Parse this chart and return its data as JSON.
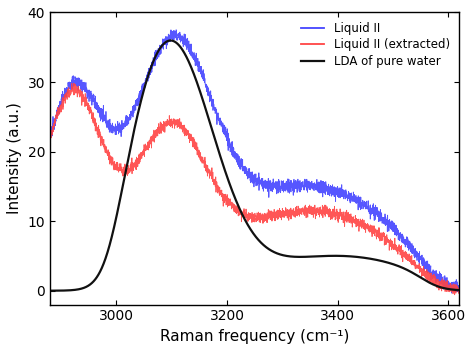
{
  "title": "",
  "xlabel": "Raman frequency (cm⁻¹)",
  "ylabel": "Intensity (a.u.)",
  "xlim": [
    2880,
    3620
  ],
  "ylim": [
    -2,
    40
  ],
  "yticks": [
    0,
    10,
    20,
    30,
    40
  ],
  "xticks": [
    3000,
    3200,
    3400,
    3600
  ],
  "legend": [
    "Liquid II",
    "Liquid II (extracted)",
    "LDA of pure water"
  ],
  "legend_colors": [
    "#4444ff",
    "#ff4444",
    "#111111"
  ],
  "blue_line_color": "#4444ff",
  "red_line_color": "#ff4444",
  "black_line_color": "#111111",
  "background_color": "#ffffff",
  "figsize": [
    4.74,
    3.51
  ],
  "dpi": 100
}
